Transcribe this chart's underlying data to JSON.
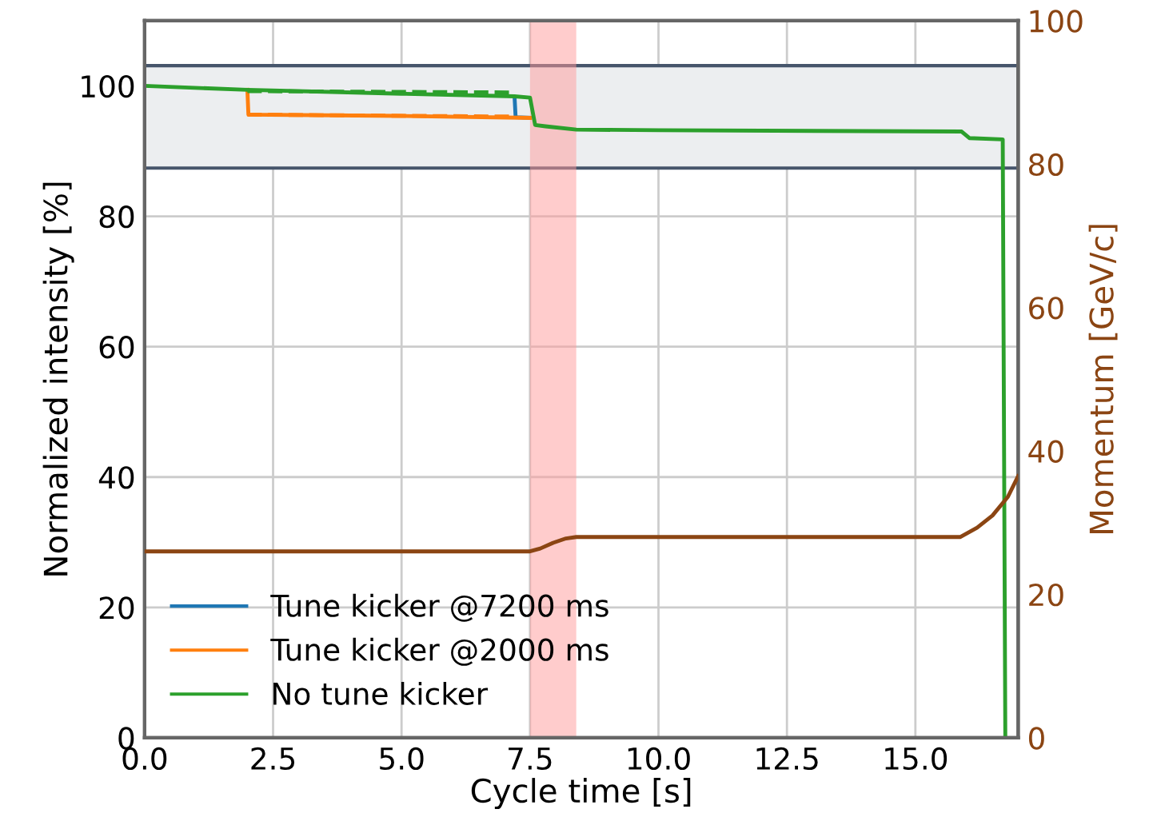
{
  "chart_data": {
    "type": "line",
    "xlabel": "Cycle time [s]",
    "ylabel": "Normalized intensity [%]",
    "y2label": "Momentum [GeV/c]",
    "xlim": [
      0,
      17.0
    ],
    "xticks": [
      {
        "value": 0,
        "label": "0.0"
      },
      2.5,
      {
        "value": 5,
        "label": "5.0"
      },
      7.5,
      {
        "value": 10,
        "label": "10.0"
      },
      12.5,
      {
        "value": 15,
        "label": "15.0"
      }
    ],
    "ylim": [
      0,
      110
    ],
    "yticks": [
      0,
      20,
      40,
      60,
      80,
      100
    ],
    "y2lim": [
      0,
      100
    ],
    "y2ticks": [
      0,
      20,
      40,
      60,
      80,
      100
    ],
    "grid": true,
    "legend": "bottom left",
    "line_style": "solid",
    "marker": "none",
    "series": [
      {
        "name": "Tune kicker @7200 ms",
        "color": "#1f77b4",
        "x": [
          7.2,
          7.22,
          7.5
        ],
        "values": [
          98.2,
          95.2,
          95.1
        ]
      },
      {
        "name": "Tune kicker @2000 ms",
        "color": "#ff7f0e",
        "x": [
          2.0,
          2.02,
          5.0,
          7.5
        ],
        "values": [
          99.4,
          95.6,
          95.4,
          95.1
        ]
      },
      {
        "color": "#ff7f0e",
        "line_style": "dashed",
        "x": [
          2.0,
          7.1
        ],
        "values": [
          95.6,
          95.3
        ]
      },
      {
        "color": "#2ca02c",
        "line_style": "dashed",
        "x": [
          2.0,
          7.1
        ],
        "values": [
          99.2,
          99.0
        ]
      },
      {
        "name": "No tune kicker",
        "color": "#2ca02c",
        "x": [
          0,
          2.0,
          5.0,
          7.2,
          7.5,
          7.6,
          7.8,
          8.4,
          10.0,
          15.9,
          16.05,
          16.7,
          16.75
        ],
        "values": [
          100,
          99.4,
          98.8,
          98.4,
          98.2,
          94.0,
          93.8,
          93.3,
          93.2,
          93.0,
          92.0,
          91.8,
          0
        ]
      },
      {
        "color": "#8b4513",
        "axis": "y2",
        "x": [
          0,
          7.5,
          7.7,
          7.95,
          8.2,
          8.4,
          15.87,
          16.2,
          16.5,
          16.8,
          17.0
        ],
        "values": [
          26.0,
          26.0,
          26.4,
          27.2,
          27.8,
          28.0,
          28.0,
          29.3,
          31.0,
          33.6,
          36.5
        ]
      }
    ],
    "bands": [
      {
        "axis": "x",
        "from": 7.5,
        "to": 8.4,
        "color": "#ff9999"
      },
      {
        "axis": "y",
        "from": 87.4,
        "to": 103.1,
        "color": "#eceef0"
      }
    ]
  }
}
